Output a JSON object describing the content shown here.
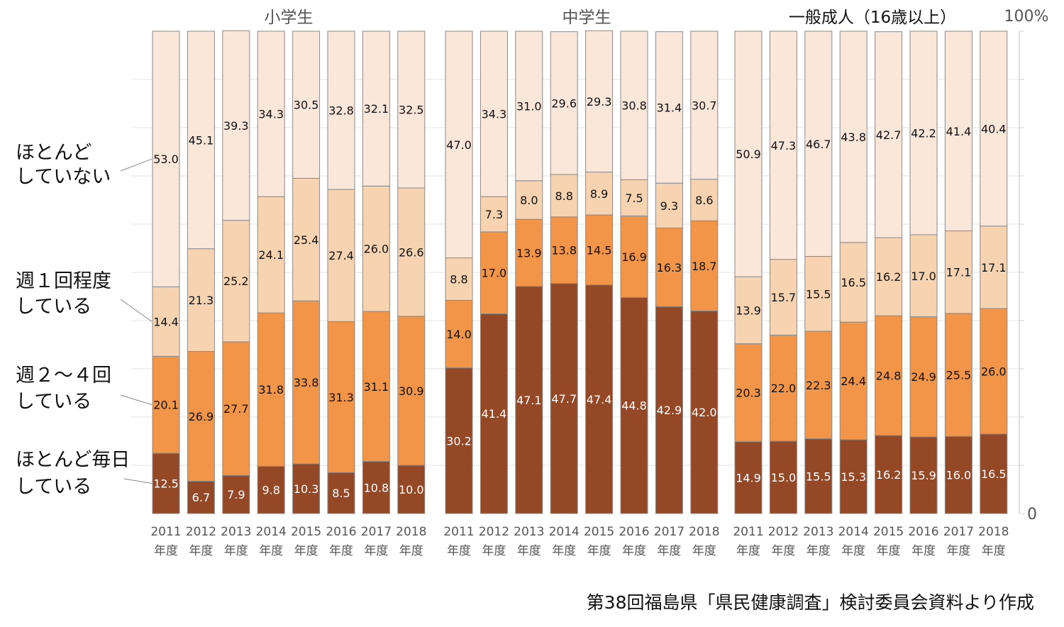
{
  "chart_data": {
    "type": "bar",
    "stacked": true,
    "percent_stacked": true,
    "x": [
      "2011",
      "2012",
      "2013",
      "2014",
      "2015",
      "2016",
      "2017",
      "2018"
    ],
    "x_suffix": "年度",
    "ylim": [
      0,
      100
    ],
    "y_axis_labels": {
      "top": "100%",
      "bottom": "0"
    },
    "grid": true,
    "legend_position": "left",
    "colors": {
      "daily": "#954826",
      "twice_weekly": "#F29548",
      "once_weekly": "#F8D3B2",
      "rarely": "#FBE6DA",
      "border": "#8a8a8a"
    },
    "series_labels": {
      "rarely": [
        "ほとんど",
        "していない"
      ],
      "once_weekly": [
        "週１回程度",
        "している"
      ],
      "twice_weekly": [
        "週２～４回",
        "している"
      ],
      "daily": [
        "ほとんど毎日",
        "している"
      ]
    },
    "panels": [
      {
        "title": "小学生",
        "daily": [
          12.5,
          6.7,
          7.9,
          9.8,
          10.3,
          8.5,
          10.8,
          10.0
        ],
        "twice_weekly": [
          20.1,
          26.9,
          27.7,
          31.8,
          33.8,
          31.3,
          31.1,
          30.9
        ],
        "once_weekly": [
          14.4,
          21.3,
          25.2,
          24.1,
          25.4,
          27.4,
          26.0,
          26.6
        ],
        "rarely": [
          53.0,
          45.1,
          39.3,
          34.3,
          30.5,
          32.8,
          32.1,
          32.5
        ]
      },
      {
        "title": "中学生",
        "daily": [
          30.2,
          41.4,
          47.1,
          47.7,
          47.4,
          44.8,
          42.9,
          42.0
        ],
        "twice_weekly": [
          14.0,
          17.0,
          13.9,
          13.8,
          14.5,
          16.9,
          16.3,
          18.7
        ],
        "once_weekly": [
          8.8,
          7.3,
          8.0,
          8.8,
          8.9,
          7.5,
          9.3,
          8.6
        ],
        "rarely": [
          47.0,
          34.3,
          31.0,
          29.6,
          29.3,
          30.8,
          31.4,
          30.7
        ]
      },
      {
        "title": "一般成人（16歳以上）",
        "daily": [
          14.9,
          15.0,
          15.5,
          15.3,
          16.2,
          15.9,
          16.0,
          16.5
        ],
        "twice_weekly": [
          20.3,
          22.0,
          22.3,
          24.4,
          24.8,
          24.9,
          25.5,
          26.0
        ],
        "once_weekly": [
          13.9,
          15.7,
          15.5,
          16.5,
          16.2,
          17.0,
          17.1,
          17.1
        ],
        "rarely": [
          50.9,
          47.3,
          46.7,
          43.8,
          42.7,
          42.2,
          41.4,
          40.4
        ]
      }
    ]
  },
  "source_note": "第38回福島県「県民健康調査」検討委員会資料より作成"
}
